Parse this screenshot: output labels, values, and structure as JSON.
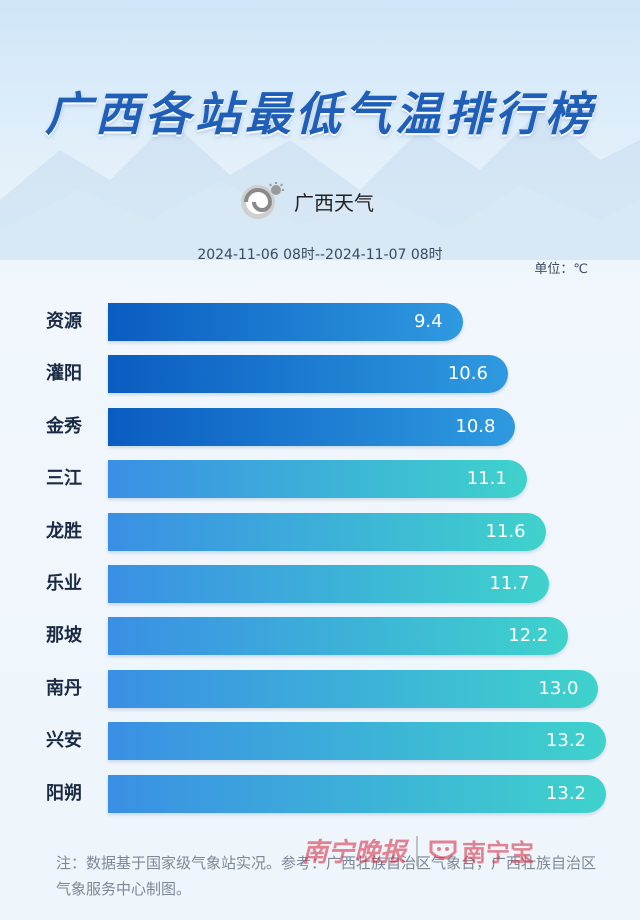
{
  "title": "广西各站最低气温排行榜",
  "brand": {
    "name": "广西天气",
    "logo_icon": "weather-swirl-icon"
  },
  "period": "2024-11-06 08时--2024-11-07 08时",
  "unit": "单位：℃",
  "footnote": "注：数据基于国家级气象站实况。参考：广西壮族自治区气象台，广西壮族自治区气象服务中心制图。",
  "footer": {
    "paper": "南宁晚报",
    "app": "南宁宝",
    "app_icon": "nanning-bao-icon"
  },
  "colors": {
    "bar_dark_start": "#0a5cc0",
    "bar_dark_end": "#2f9ae0",
    "bar_light_start": "#3a8fe4",
    "bar_light_end": "#3fd2cc",
    "title": "#1f5fb8"
  },
  "chart_data": {
    "type": "bar",
    "orientation": "horizontal",
    "categories": [
      "资源",
      "灌阳",
      "金秀",
      "三江",
      "龙胜",
      "乐业",
      "那坡",
      "南丹",
      "兴安",
      "阳朔"
    ],
    "values": [
      9.4,
      10.6,
      10.8,
      11.1,
      11.6,
      11.7,
      12.2,
      13.0,
      13.2,
      13.2
    ],
    "value_labels": [
      "9.4",
      "10.6",
      "10.8",
      "11.1",
      "11.6",
      "11.7",
      "12.2",
      "13.0",
      "13.2",
      "13.2"
    ],
    "highlighted_count": 3,
    "title": "广西各站最低气温排行榜",
    "xlabel": "",
    "ylabel": "",
    "unit": "℃",
    "xlim": [
      0,
      13.2
    ],
    "grid": false,
    "legend": "none"
  }
}
